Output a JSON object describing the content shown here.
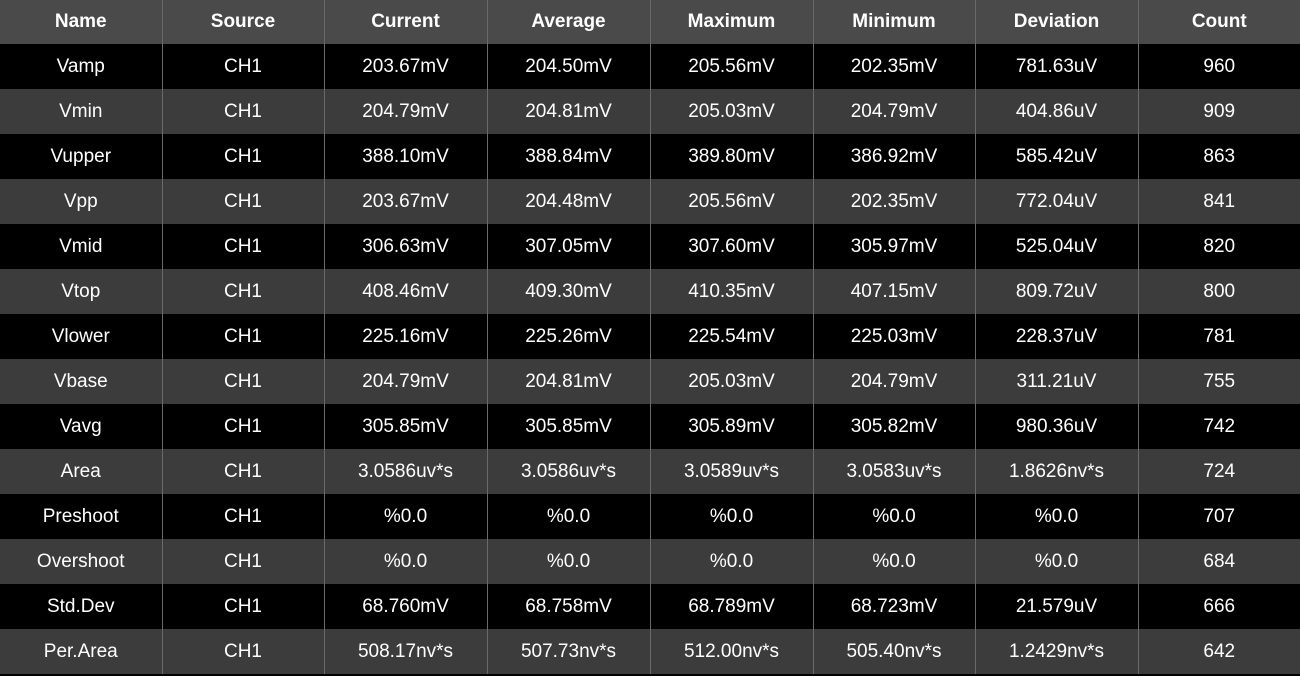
{
  "colors": {
    "header_bg": "#4a4a4a",
    "row_dark": "#000000",
    "row_light": "#3c3c3c",
    "grid_line": "#6a6a6a",
    "text": "#ffffff"
  },
  "table": {
    "columns": [
      "Name",
      "Source",
      "Current",
      "Average",
      "Maximum",
      "Minimum",
      "Deviation",
      "Count"
    ],
    "rows": [
      [
        "Vamp",
        "CH1",
        "203.67mV",
        "204.50mV",
        "205.56mV",
        "202.35mV",
        "781.63uV",
        "960"
      ],
      [
        "Vmin",
        "CH1",
        "204.79mV",
        "204.81mV",
        "205.03mV",
        "204.79mV",
        "404.86uV",
        "909"
      ],
      [
        "Vupper",
        "CH1",
        "388.10mV",
        "388.84mV",
        "389.80mV",
        "386.92mV",
        "585.42uV",
        "863"
      ],
      [
        "Vpp",
        "CH1",
        "203.67mV",
        "204.48mV",
        "205.56mV",
        "202.35mV",
        "772.04uV",
        "841"
      ],
      [
        "Vmid",
        "CH1",
        "306.63mV",
        "307.05mV",
        "307.60mV",
        "305.97mV",
        "525.04uV",
        "820"
      ],
      [
        "Vtop",
        "CH1",
        "408.46mV",
        "409.30mV",
        "410.35mV",
        "407.15mV",
        "809.72uV",
        "800"
      ],
      [
        "Vlower",
        "CH1",
        "225.16mV",
        "225.26mV",
        "225.54mV",
        "225.03mV",
        "228.37uV",
        "781"
      ],
      [
        "Vbase",
        "CH1",
        "204.79mV",
        "204.81mV",
        "205.03mV",
        "204.79mV",
        "311.21uV",
        "755"
      ],
      [
        "Vavg",
        "CH1",
        "305.85mV",
        "305.85mV",
        "305.89mV",
        "305.82mV",
        "980.36uV",
        "742"
      ],
      [
        "Area",
        "CH1",
        "3.0586uv*s",
        "3.0586uv*s",
        "3.0589uv*s",
        "3.0583uv*s",
        "1.8626nv*s",
        "724"
      ],
      [
        "Preshoot",
        "CH1",
        "%0.0",
        "%0.0",
        "%0.0",
        "%0.0",
        "%0.0",
        "707"
      ],
      [
        "Overshoot",
        "CH1",
        "%0.0",
        "%0.0",
        "%0.0",
        "%0.0",
        "%0.0",
        "684"
      ],
      [
        "Std.Dev",
        "CH1",
        "68.760mV",
        "68.758mV",
        "68.789mV",
        "68.723mV",
        "21.579uV",
        "666"
      ],
      [
        "Per.Area",
        "CH1",
        "508.17nv*s",
        "507.73nv*s",
        "512.00nv*s",
        "505.40nv*s",
        "1.2429nv*s",
        "642"
      ]
    ]
  }
}
